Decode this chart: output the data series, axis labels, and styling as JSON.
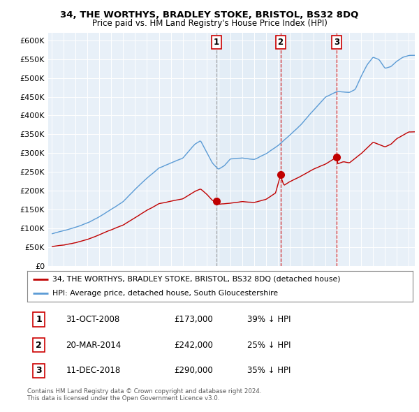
{
  "title": "34, THE WORTHYS, BRADLEY STOKE, BRISTOL, BS32 8DQ",
  "subtitle": "Price paid vs. HM Land Registry's House Price Index (HPI)",
  "legend_line1": "34, THE WORTHYS, BRADLEY STOKE, BRISTOL, BS32 8DQ (detached house)",
  "legend_line2": "HPI: Average price, detached house, South Gloucestershire",
  "footer1": "Contains HM Land Registry data © Crown copyright and database right 2024.",
  "footer2": "This data is licensed under the Open Government Licence v3.0.",
  "transactions": [
    {
      "num": 1,
      "date": "31-OCT-2008",
      "price": "£173,000",
      "pct": "39% ↓ HPI",
      "year": 2008.83
    },
    {
      "num": 2,
      "date": "20-MAR-2014",
      "price": "£242,000",
      "pct": "25% ↓ HPI",
      "year": 2014.21
    },
    {
      "num": 3,
      "date": "11-DEC-2018",
      "price": "£290,000",
      "pct": "35% ↓ HPI",
      "year": 2018.94
    }
  ],
  "transaction_values": [
    173000,
    242000,
    290000
  ],
  "hpi_color": "#5b9bd5",
  "price_color": "#c00000",
  "vline_colors": [
    "#999999",
    "#cc0000",
    "#cc0000"
  ],
  "shade_color": "#dce9f5",
  "plot_bg": "#e8f0f8",
  "ylim": [
    0,
    620000
  ],
  "yticks": [
    0,
    50000,
    100000,
    150000,
    200000,
    250000,
    300000,
    350000,
    400000,
    450000,
    500000,
    550000,
    600000
  ],
  "xlim_start": 1994.7,
  "xlim_end": 2025.5
}
